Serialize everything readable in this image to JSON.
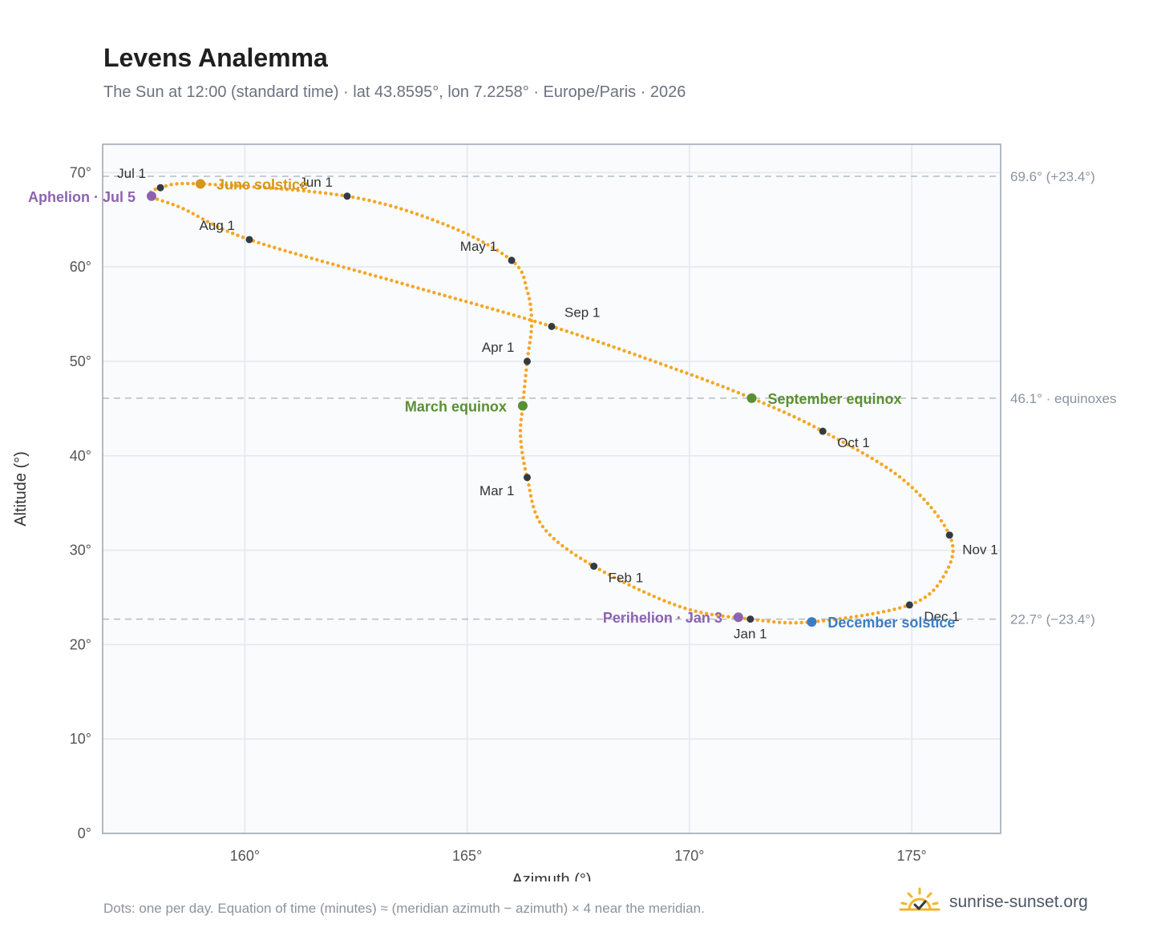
{
  "title": "Levens Analemma",
  "subtitle": "The Sun at 12:00 (standard time) · lat 43.8595°, lon 7.2258° · Europe/Paris · 2026",
  "footnote": "Dots: one per day. Equation of time (minutes) ≈ (meridian azimuth − azimuth) × 4 near the meridian.",
  "brand": {
    "name": "sunrise-sunset.org",
    "logo_icon": "sun-check-icon"
  },
  "colors": {
    "path": "#f5a623",
    "month_marker": "#333a44",
    "june_solstice": "#d89516",
    "december_solstice": "#3b7dc4",
    "equinox": "#5a8f32",
    "apsis": "#8c63b0",
    "plot_bg": "#f9fbfd",
    "grid": "#e3e8ef",
    "frame": "#9aa4b2",
    "ref_line": "#b3bcc7"
  },
  "chart_data": {
    "type": "scatter",
    "xlabel": "Azimuth (°)",
    "ylabel": "Altitude (°)",
    "xlim": [
      156.8,
      177.0
    ],
    "ylim": [
      0,
      73
    ],
    "x_ticks": [
      160,
      165,
      170,
      175
    ],
    "x_tick_labels": [
      "160°",
      "165°",
      "170°",
      "175°"
    ],
    "y_ticks": [
      0,
      10,
      20,
      30,
      40,
      50,
      60,
      70
    ],
    "y_tick_labels": [
      "0°",
      "10°",
      "20°",
      "30°",
      "40°",
      "50°",
      "60°",
      "70°"
    ],
    "grid": true,
    "reference_lines": [
      {
        "y": 69.6,
        "label": "69.6° (+23.4°)"
      },
      {
        "y": 46.1,
        "label": "46.1° · equinoxes"
      },
      {
        "y": 22.7,
        "label": "22.7° (−23.4°)"
      }
    ],
    "path_keypoints": [
      {
        "x": 171.37,
        "y": 22.7
      },
      {
        "x": 169.8,
        "y": 24.0
      },
      {
        "x": 167.85,
        "y": 28.3
      },
      {
        "x": 166.7,
        "y": 32.5
      },
      {
        "x": 166.35,
        "y": 37.7
      },
      {
        "x": 166.2,
        "y": 42.0
      },
      {
        "x": 166.25,
        "y": 45.3
      },
      {
        "x": 166.35,
        "y": 50.0
      },
      {
        "x": 166.45,
        "y": 54.0
      },
      {
        "x": 166.35,
        "y": 57.5
      },
      {
        "x": 166.0,
        "y": 60.7
      },
      {
        "x": 164.5,
        "y": 64.5
      },
      {
        "x": 162.3,
        "y": 67.5
      },
      {
        "x": 159.0,
        "y": 68.8
      },
      {
        "x": 158.1,
        "y": 68.4
      },
      {
        "x": 157.9,
        "y": 67.5
      },
      {
        "x": 158.6,
        "y": 66.2
      },
      {
        "x": 160.1,
        "y": 62.9
      },
      {
        "x": 163.5,
        "y": 58.3
      },
      {
        "x": 166.9,
        "y": 53.7
      },
      {
        "x": 169.5,
        "y": 49.5
      },
      {
        "x": 171.4,
        "y": 46.1
      },
      {
        "x": 173.0,
        "y": 42.6
      },
      {
        "x": 174.8,
        "y": 37.5
      },
      {
        "x": 175.85,
        "y": 31.6
      },
      {
        "x": 175.75,
        "y": 27.5
      },
      {
        "x": 174.95,
        "y": 24.2
      },
      {
        "x": 172.75,
        "y": 22.4
      },
      {
        "x": 171.37,
        "y": 22.7
      }
    ],
    "month_markers": [
      {
        "label": "Jan 1",
        "x": 171.37,
        "y": 22.7,
        "anchor": "below"
      },
      {
        "label": "Feb 1",
        "x": 167.85,
        "y": 28.3,
        "anchor": "below-right"
      },
      {
        "label": "Mar 1",
        "x": 166.35,
        "y": 37.7,
        "anchor": "below-left"
      },
      {
        "label": "Apr 1",
        "x": 166.35,
        "y": 50.0,
        "anchor": "left"
      },
      {
        "label": "May 1",
        "x": 166.0,
        "y": 60.7,
        "anchor": "above-left"
      },
      {
        "label": "Jun 1",
        "x": 162.3,
        "y": 67.5,
        "anchor": "above-left"
      },
      {
        "label": "Jul 1",
        "x": 158.1,
        "y": 68.4,
        "anchor": "above-left"
      },
      {
        "label": "Aug 1",
        "x": 160.1,
        "y": 62.9,
        "anchor": "above-left"
      },
      {
        "label": "Sep 1",
        "x": 166.9,
        "y": 53.7,
        "anchor": "above-right"
      },
      {
        "label": "Oct 1",
        "x": 173.0,
        "y": 42.6,
        "anchor": "below-right"
      },
      {
        "label": "Nov 1",
        "x": 175.85,
        "y": 31.6,
        "anchor": "right"
      },
      {
        "label": "Dec 1",
        "x": 174.95,
        "y": 24.2,
        "anchor": "below-right"
      }
    ],
    "events": [
      {
        "label": "June solstice",
        "x": 159.0,
        "y": 68.8,
        "color": "#d89516",
        "anchor": "right"
      },
      {
        "label": "December solstice",
        "x": 172.75,
        "y": 22.4,
        "color": "#3b7dc4",
        "anchor": "right"
      },
      {
        "label": "March equinox",
        "x": 166.25,
        "y": 45.3,
        "color": "#5a8f32",
        "anchor": "left"
      },
      {
        "label": "September equinox",
        "x": 171.4,
        "y": 46.1,
        "color": "#5a8f32",
        "anchor": "right"
      },
      {
        "label": "Aphelion · Jul 5",
        "x": 157.9,
        "y": 67.5,
        "color": "#8c63b0",
        "anchor": "left"
      },
      {
        "label": "Perihelion · Jan 3",
        "x": 171.1,
        "y": 22.9,
        "color": "#8c63b0",
        "anchor": "left"
      }
    ]
  }
}
